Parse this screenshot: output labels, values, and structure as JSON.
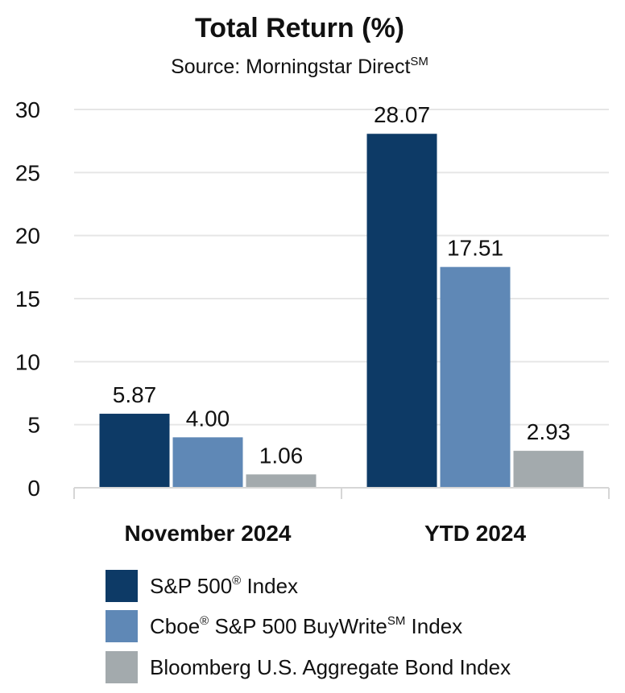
{
  "chart_data": {
    "type": "bar",
    "title": "Total Return (%)",
    "subtitle": "Source: Morningstar Direct",
    "subtitle_sup": "SM",
    "categories": [
      "November 2024",
      "YTD 2024"
    ],
    "series": [
      {
        "name": "S&P 500",
        "name_sup": "®",
        "name_suffix": " Index",
        "color": "#0d3a66",
        "values": [
          5.87,
          28.07
        ],
        "labels": [
          "5.87",
          "28.07"
        ]
      },
      {
        "name": "Cboe",
        "name_sup": "®",
        "name_suffix": " S&P 500 BuyWrite",
        "name_sup2": "SM",
        "name_suffix2": " Index",
        "color": "#5f88b6",
        "values": [
          4.0,
          17.51
        ],
        "labels": [
          "4.00",
          "17.51"
        ]
      },
      {
        "name": "Bloomberg U.S. Aggregate Bond Index",
        "color": "#a3aaad",
        "values": [
          1.06,
          2.93
        ],
        "labels": [
          "1.06",
          "2.93"
        ]
      }
    ],
    "ylim": [
      0,
      30
    ],
    "yticks": [
      "0",
      "5",
      "10",
      "15",
      "20",
      "25",
      "30"
    ],
    "xlabel": "",
    "ylabel": "",
    "grid": true,
    "legend_position": "bottom"
  }
}
